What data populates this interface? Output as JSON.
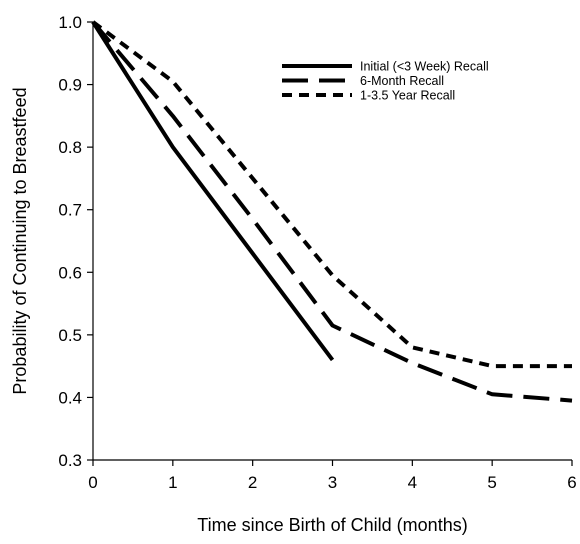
{
  "chart_data": {
    "type": "line",
    "title": "",
    "xlabel": "Time since Birth of Child (months)",
    "ylabel": "Probability of Continuing to Breastfeed",
    "xlim": [
      0,
      6
    ],
    "ylim": [
      0.3,
      1.0
    ],
    "x_ticks": [
      "0",
      "1",
      "2",
      "3",
      "4",
      "5",
      "6"
    ],
    "y_ticks": [
      "0.3",
      "0.4",
      "0.5",
      "0.6",
      "0.7",
      "0.8",
      "0.9",
      "1.0"
    ],
    "grid": false,
    "legend_position": "top-right",
    "series": [
      {
        "name": "Initial (<3 Week) Recall",
        "style": "solid",
        "color": "#000000",
        "x": [
          0,
          1,
          2,
          3
        ],
        "y": [
          1.0,
          0.8,
          0.63,
          0.46
        ]
      },
      {
        "name": "6-Month Recall",
        "style": "long-dash",
        "color": "#000000",
        "x": [
          0,
          1,
          2,
          3,
          4,
          5,
          6
        ],
        "y": [
          1.0,
          0.85,
          0.685,
          0.515,
          0.455,
          0.405,
          0.395
        ]
      },
      {
        "name": "1-3.5 Year Recall",
        "style": "short-dash",
        "color": "#000000",
        "x": [
          0,
          1,
          2,
          3,
          4,
          5,
          6
        ],
        "y": [
          1.0,
          0.905,
          0.75,
          0.595,
          0.48,
          0.45,
          0.45
        ]
      }
    ]
  }
}
